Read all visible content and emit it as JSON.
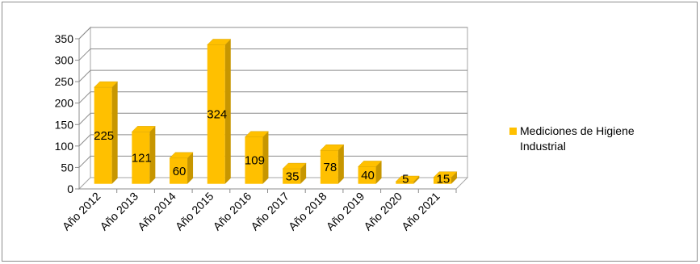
{
  "chart_data": {
    "type": "bar",
    "title": "",
    "xlabel": "",
    "ylabel": "",
    "categories": [
      "Año 2012",
      "Año 2013",
      "Año 2014",
      "Año 2015",
      "Año 2016",
      "Año 2017",
      "Año 2018",
      "Año 2019",
      "Año 2020",
      "Año 2021"
    ],
    "series": [
      {
        "name": "Mediciones de Higiene Industrial",
        "values": [
          225,
          121,
          60,
          324,
          109,
          35,
          78,
          40,
          5,
          15
        ],
        "color": "#FFC000"
      }
    ],
    "ylim": [
      0,
      350
    ],
    "yticks": [
      0,
      50,
      100,
      150,
      200,
      250,
      300,
      350
    ],
    "grid": true,
    "three_d": true,
    "legend_position": "right"
  }
}
